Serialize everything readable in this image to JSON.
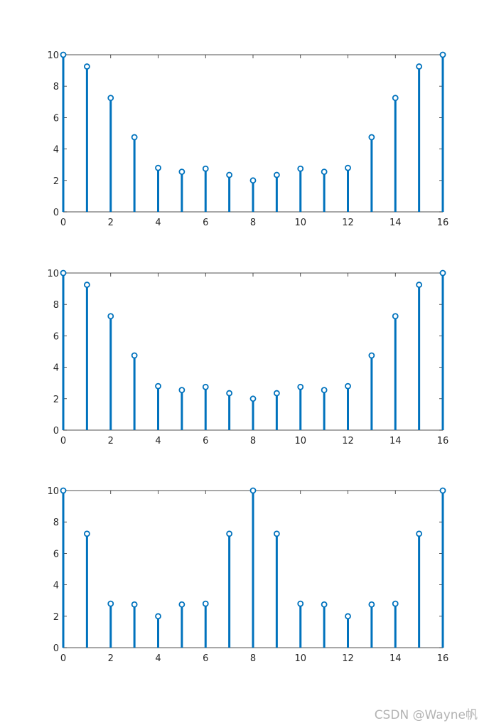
{
  "figure": {
    "watermark": "CSDN @Wayne帆"
  },
  "colors": {
    "stem": "#0072BD",
    "axis": "#262626",
    "tick_label": "#262626"
  },
  "chart_data": [
    {
      "type": "stem",
      "x": [
        0,
        1,
        2,
        3,
        4,
        5,
        6,
        7,
        8,
        9,
        10,
        11,
        12,
        13,
        14,
        15,
        16
      ],
      "y": [
        10.0,
        9.25,
        7.25,
        4.75,
        2.8,
        2.55,
        2.75,
        2.35,
        2.0,
        2.35,
        2.75,
        2.55,
        2.8,
        4.75,
        7.25,
        9.25,
        10.0
      ],
      "xlim": [
        0,
        16
      ],
      "ylim": [
        0,
        10
      ],
      "xticks": [
        0,
        2,
        4,
        6,
        8,
        10,
        12,
        14,
        16
      ],
      "yticks": [
        0,
        2,
        4,
        6,
        8,
        10
      ],
      "marker": "circle",
      "grid": false,
      "title": "",
      "xlabel": "",
      "ylabel": ""
    },
    {
      "type": "stem",
      "x": [
        0,
        1,
        2,
        3,
        4,
        5,
        6,
        7,
        8,
        9,
        10,
        11,
        12,
        13,
        14,
        15,
        16
      ],
      "y": [
        10.0,
        9.25,
        7.25,
        4.75,
        2.8,
        2.55,
        2.75,
        2.35,
        2.0,
        2.35,
        2.75,
        2.55,
        2.8,
        4.75,
        7.25,
        9.25,
        10.0
      ],
      "xlim": [
        0,
        16
      ],
      "ylim": [
        0,
        10
      ],
      "xticks": [
        0,
        2,
        4,
        6,
        8,
        10,
        12,
        14,
        16
      ],
      "yticks": [
        0,
        2,
        4,
        6,
        8,
        10
      ],
      "marker": "circle",
      "grid": false,
      "title": "",
      "xlabel": "",
      "ylabel": ""
    },
    {
      "type": "stem",
      "x": [
        0,
        1,
        2,
        3,
        4,
        5,
        6,
        7,
        8,
        9,
        10,
        11,
        12,
        13,
        14,
        15,
        16
      ],
      "y": [
        10.0,
        7.25,
        2.8,
        2.75,
        2.0,
        2.75,
        2.8,
        7.25,
        10.0,
        7.25,
        2.8,
        2.75,
        2.0,
        2.75,
        2.8,
        7.25,
        10.0
      ],
      "xlim": [
        0,
        16
      ],
      "ylim": [
        0,
        10
      ],
      "xticks": [
        0,
        2,
        4,
        6,
        8,
        10,
        12,
        14,
        16
      ],
      "yticks": [
        0,
        2,
        4,
        6,
        8,
        10
      ],
      "marker": "circle",
      "grid": false,
      "title": "",
      "xlabel": "",
      "ylabel": ""
    }
  ]
}
